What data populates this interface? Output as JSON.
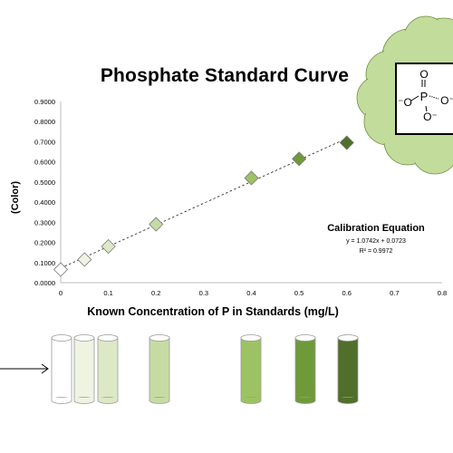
{
  "chart_data": {
    "type": "scatter",
    "title": "Phosphate Standard Curve",
    "xlabel": "Known Concentration  of P in Standards (mg/L)",
    "ylabel": "(Color)",
    "xlim": [
      0,
      0.8
    ],
    "ylim": [
      0,
      0.9
    ],
    "xticks": [
      "0",
      "0.1",
      "0.2",
      "0.3",
      "0.4",
      "0.5",
      "0.6",
      "0.7",
      "0.8"
    ],
    "yticks": [
      "0.0000",
      "0.1000",
      "0.2000",
      "0.3000",
      "0.4000",
      "0.5000",
      "0.6000",
      "0.7000",
      "0.8000",
      "0.9000"
    ],
    "grid": false,
    "series": [
      {
        "x": [
          0,
          0.05,
          0.1,
          0.2,
          0.4,
          0.5,
          0.6
        ],
        "values": [
          0.065,
          0.115,
          0.18,
          0.29,
          0.52,
          0.615,
          0.695
        ],
        "colors": [
          "#ffffff",
          "#eef3e2",
          "#dce8c6",
          "#c6dba4",
          "#9dc264",
          "#6f9a3a",
          "#4f6f2b"
        ]
      }
    ],
    "trendline": {
      "slope": 1.0742,
      "intercept": 0.0723,
      "style": "dashed"
    },
    "annotation": {
      "title": "Calibration Equation",
      "equation": "y = 1.0742x + 0.0723",
      "r2": "R² = 0.9972"
    }
  },
  "decorations": {
    "tube_colors": [
      "#ffffff",
      "#eef3e2",
      "#dce8c6",
      "#c6dba4",
      "#9dc264",
      "#6f9a3a",
      "#4f6f2b"
    ],
    "cloud_color": "#c2dc9c",
    "molecule_labels": {
      "p": "P",
      "o_top": "O",
      "o_left": "⁻O",
      "o_right": "O⁻",
      "o_bottom": "O⁻"
    }
  }
}
